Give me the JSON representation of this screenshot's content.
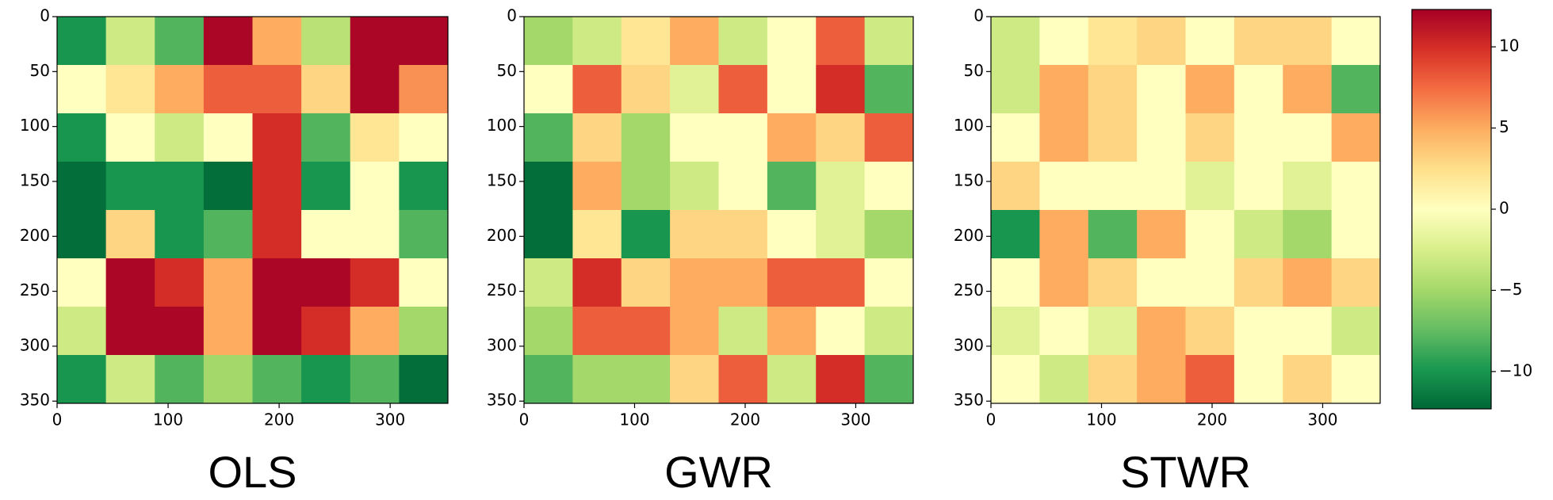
{
  "chart_data": [
    {
      "type": "heatmap",
      "title": "OLS",
      "xlim": [
        0,
        352
      ],
      "ylim": [
        352,
        0
      ],
      "xticks": [
        0,
        100,
        200,
        300
      ],
      "yticks": [
        0,
        50,
        100,
        150,
        200,
        250,
        300,
        350
      ],
      "z": [
        [
          -10,
          -3,
          -8,
          12,
          5,
          -4,
          12,
          12
        ],
        [
          0,
          2,
          5,
          8,
          8,
          3,
          12,
          6
        ],
        [
          -10,
          0,
          -3,
          0,
          10,
          -8,
          2,
          0
        ],
        [
          -12,
          -10,
          -10,
          -12,
          10,
          -10,
          0,
          -10
        ],
        [
          -12,
          3,
          -10,
          -8,
          10,
          0,
          0,
          -8
        ],
        [
          0,
          12,
          10,
          5,
          12,
          12,
          10,
          0
        ],
        [
          -3,
          12,
          12,
          5,
          12,
          10,
          5,
          -5
        ],
        [
          -10,
          -3,
          -8,
          -5,
          -8,
          -10,
          -8,
          -12
        ]
      ]
    },
    {
      "type": "heatmap",
      "title": "GWR",
      "xlim": [
        0,
        352
      ],
      "ylim": [
        352,
        0
      ],
      "xticks": [
        0,
        100,
        200,
        300
      ],
      "yticks": [
        0,
        50,
        100,
        150,
        200,
        250,
        300,
        350
      ],
      "z": [
        [
          -5,
          -3,
          2,
          5,
          -3,
          0,
          8,
          -3
        ],
        [
          0,
          8,
          3,
          -2,
          8,
          0,
          10,
          -8
        ],
        [
          -8,
          3,
          -5,
          0,
          0,
          5,
          3,
          8
        ],
        [
          -12,
          5,
          -5,
          -3,
          0,
          -8,
          -2,
          0
        ],
        [
          -12,
          2,
          -10,
          3,
          3,
          0,
          -2,
          -5
        ],
        [
          -3,
          10,
          3,
          5,
          5,
          8,
          8,
          0
        ],
        [
          -5,
          8,
          8,
          5,
          -3,
          5,
          0,
          -3
        ],
        [
          -8,
          -5,
          -5,
          3,
          8,
          -3,
          10,
          -8
        ]
      ]
    },
    {
      "type": "heatmap",
      "title": "STWR",
      "xlim": [
        0,
        352
      ],
      "ylim": [
        352,
        0
      ],
      "xticks": [
        0,
        100,
        200,
        300
      ],
      "yticks": [
        0,
        50,
        100,
        150,
        200,
        250,
        300,
        350
      ],
      "z": [
        [
          -3,
          0,
          2,
          3,
          0,
          3,
          3,
          0
        ],
        [
          -3,
          5,
          3,
          0,
          5,
          0,
          5,
          -8
        ],
        [
          0,
          5,
          3,
          0,
          3,
          0,
          0,
          5
        ],
        [
          3,
          0,
          0,
          0,
          -2,
          0,
          -2,
          0
        ],
        [
          -10,
          5,
          -8,
          5,
          0,
          -3,
          -5,
          0
        ],
        [
          0,
          5,
          3,
          0,
          0,
          3,
          5,
          3
        ],
        [
          -2,
          0,
          -2,
          5,
          3,
          0,
          0,
          -3
        ],
        [
          0,
          -3,
          3,
          5,
          8,
          0,
          3,
          0
        ]
      ]
    },
    {
      "type": "colorbar",
      "lim": [
        -12.3,
        12.3
      ],
      "ticks": [
        {
          "value": -10,
          "label": "−10"
        },
        {
          "value": -5,
          "label": "−5"
        },
        0,
        5,
        10
      ],
      "colormap": [
        "#006837",
        "#1a9850",
        "#66bd63",
        "#a6d96a",
        "#d9ef8b",
        "#ffffbf",
        "#fee08b",
        "#fdae61",
        "#f46d43",
        "#d73027",
        "#a50026"
      ]
    }
  ]
}
